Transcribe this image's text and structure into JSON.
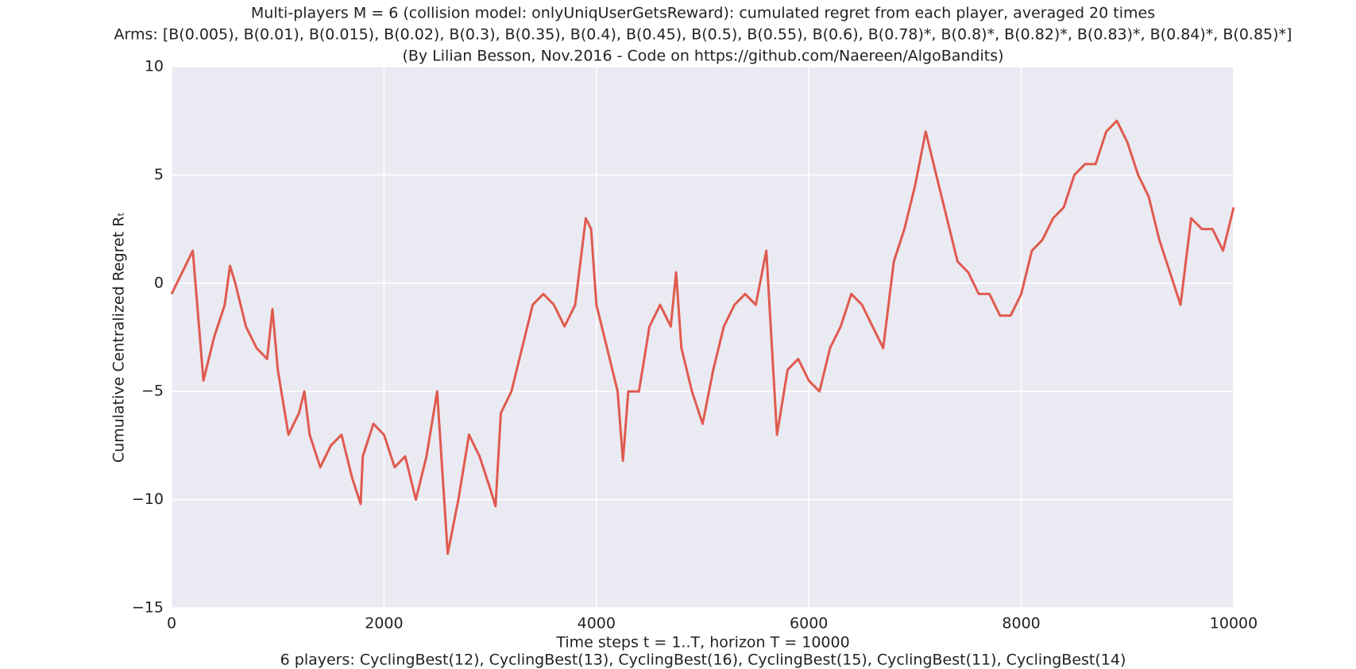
{
  "chart_data": {
    "type": "line",
    "title": "Multi-players M = 6 (collision model: onlyUniqUserGetsReward): cumulated regret from each player, averaged 20 times",
    "subtitle": "Arms: [B(0.005), B(0.01), B(0.015), B(0.02), B(0.3), B(0.35), B(0.4), B(0.45), B(0.5), B(0.55), B(0.6), B(0.78)*, B(0.8)*, B(0.82)*, B(0.83)*, B(0.84)*, B(0.85)*]",
    "annotation": "(By Lilian Besson, Nov.2016 - Code on https://github.com/Naereen/AlgoBandits)",
    "x_label": "Time steps t = 1..T, horizon T = 10000",
    "x_label_2": "6 players: CyclingBest(12), CyclingBest(13), CyclingBest(16), CyclingBest(15), CyclingBest(11), CyclingBest(14)",
    "y_label": "Cumulative Centralized Regret Rₜ",
    "color": "#e05a4f",
    "grid": true,
    "xlim": [
      0,
      10000
    ],
    "ylim": [
      -15,
      10
    ],
    "xticks": [
      0,
      2000,
      4000,
      6000,
      8000,
      10000
    ],
    "yticks": [
      {
        "value": -15,
        "label": "−15"
      },
      {
        "value": -10,
        "label": "−10"
      },
      {
        "value": -5,
        "label": "−5"
      },
      0,
      5,
      10
    ],
    "x": [
      0,
      100,
      200,
      300,
      400,
      500,
      550,
      600,
      700,
      800,
      900,
      950,
      1000,
      1100,
      1200,
      1250,
      1300,
      1400,
      1500,
      1600,
      1700,
      1780,
      1800,
      1900,
      2000,
      2100,
      2200,
      2300,
      2400,
      2500,
      2600,
      2700,
      2800,
      2900,
      3000,
      3050,
      3100,
      3200,
      3300,
      3400,
      3500,
      3600,
      3700,
      3800,
      3900,
      3950,
      4000,
      4100,
      4200,
      4250,
      4300,
      4400,
      4500,
      4600,
      4700,
      4750,
      4800,
      4900,
      5000,
      5100,
      5200,
      5300,
      5400,
      5500,
      5600,
      5700,
      5800,
      5900,
      6000,
      6100,
      6200,
      6300,
      6400,
      6500,
      6600,
      6700,
      6800,
      6900,
      7000,
      7100,
      7200,
      7300,
      7400,
      7500,
      7600,
      7700,
      7800,
      7900,
      8000,
      8100,
      8200,
      8300,
      8400,
      8500,
      8600,
      8700,
      8800,
      8900,
      9000,
      9100,
      9200,
      9300,
      9400,
      9500,
      9600,
      9700,
      9800,
      9900,
      10000
    ],
    "values": [
      -0.5,
      0.5,
      1.5,
      -4.5,
      -2.5,
      -1,
      0.8,
      0,
      -2,
      -3,
      -3.5,
      -1.2,
      -4,
      -7,
      -6,
      -5,
      -7,
      -8.5,
      -7.5,
      -7,
      -9,
      -10.2,
      -8,
      -6.5,
      -7,
      -8.5,
      -8,
      -10,
      -8,
      -5,
      -12.5,
      -10,
      -7,
      -8,
      -9.5,
      -10.3,
      -6,
      -5,
      -3,
      -1,
      -0.5,
      -1,
      -2,
      -1,
      3,
      2.5,
      -1,
      -3,
      -5,
      -8.2,
      -5,
      -5,
      -2,
      -1,
      -2,
      0.5,
      -3,
      -5,
      -6.5,
      -4,
      -2,
      -1,
      -0.5,
      -1,
      1.5,
      -7,
      -4,
      -3.5,
      -4.5,
      -5,
      -3,
      -2,
      -0.5,
      -1,
      -2,
      -3,
      1,
      2.5,
      4.5,
      7,
      5,
      3,
      1,
      0.5,
      -0.5,
      -0.5,
      -1.5,
      -1.5,
      -0.5,
      1.5,
      2,
      3,
      3.5,
      5,
      5.5,
      5.5,
      7,
      7.5,
      6.5,
      5,
      4,
      2,
      0.5,
      -1,
      3,
      2.5,
      2.5,
      1.5,
      3.5
    ]
  }
}
